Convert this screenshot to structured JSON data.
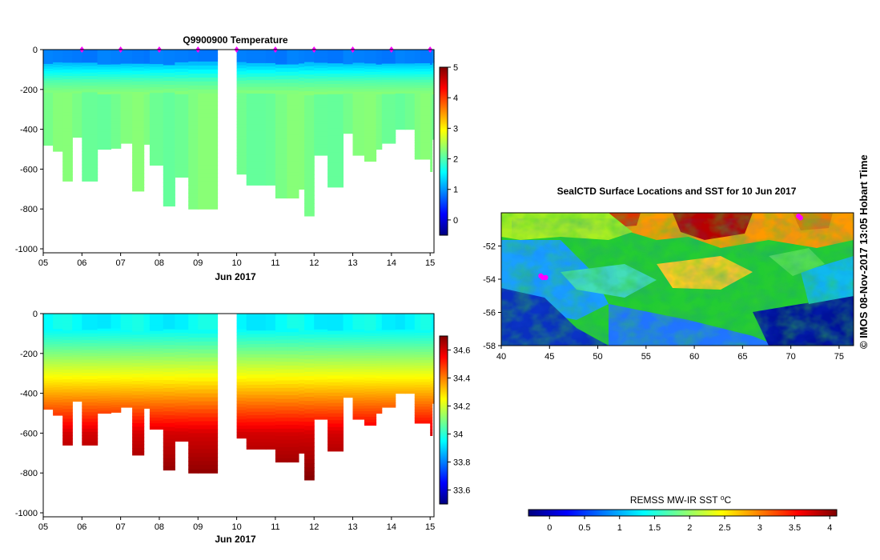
{
  "credit_text": "© IMOS 08-Nov-2017 13:05 Hobart Time",
  "chart_data": [
    {
      "id": "temperature",
      "type": "heatmap",
      "title": "Q9900900  Temperature",
      "xlabel": "Jun 2017",
      "ylabel": "",
      "xlim": [
        5,
        15.1
      ],
      "ylim": [
        -1020,
        0
      ],
      "xticks": [
        "05",
        "06",
        "07",
        "08",
        "09",
        "10",
        "11",
        "12",
        "13",
        "14",
        "15"
      ],
      "yticks": [
        0,
        -200,
        -400,
        -600,
        -800,
        -1000
      ],
      "colorbar": {
        "min": -0.5,
        "max": 5,
        "ticks": [
          0,
          1,
          2,
          3,
          4,
          5
        ]
      },
      "profile_markers": [
        6,
        7,
        8,
        9,
        10,
        11,
        12,
        13,
        14,
        15
      ],
      "profiles": {
        "times": [
          5.0,
          5.25,
          5.5,
          5.75,
          6.0,
          6.4,
          6.75,
          7.0,
          7.3,
          7.6,
          7.75,
          8.1,
          8.4,
          8.75,
          9.0,
          9.5,
          10.0,
          10.25,
          10.75,
          11.0,
          11.3,
          11.6,
          11.75,
          12.0,
          12.35,
          12.75,
          13.0,
          13.3,
          13.6,
          13.75,
          14.1,
          14.35,
          14.6,
          14.75,
          15.0,
          15.05,
          15.1
        ],
        "depths": [
          480,
          510,
          660,
          440,
          660,
          500,
          495,
          470,
          710,
          475,
          580,
          785,
          640,
          800,
          800,
          null,
          625,
          680,
          680,
          745,
          745,
          700,
          835,
          530,
          690,
          420,
          530,
          560,
          500,
          470,
          400,
          400,
          550,
          550,
          612,
          450,
          485
        ]
      }
    },
    {
      "id": "salinity",
      "type": "heatmap",
      "title": "",
      "xlabel": "Jun 2017",
      "ylabel": "",
      "xlim": [
        5,
        15.1
      ],
      "ylim": [
        -1020,
        0
      ],
      "xticks": [
        "05",
        "06",
        "07",
        "08",
        "09",
        "10",
        "11",
        "12",
        "13",
        "14",
        "15"
      ],
      "yticks": [
        0,
        -200,
        -400,
        -600,
        -800,
        -1000
      ],
      "colorbar": {
        "min": 33.5,
        "max": 34.7,
        "ticks": [
          33.6,
          33.8,
          34,
          34.2,
          34.4,
          34.6
        ]
      }
    },
    {
      "id": "sst_map",
      "type": "heatmap",
      "title": "SealCTD Surface Locations and SST for 10 Jun 2017",
      "xlabel": "",
      "ylabel": "",
      "xlim": [
        40,
        76.5
      ],
      "ylim": [
        -58,
        -50
      ],
      "xticks": [
        40,
        45,
        50,
        55,
        60,
        65,
        70,
        75
      ],
      "yticks": [
        -52,
        -54,
        -56,
        -58
      ],
      "track_points": [
        [
          44.3,
          -53.9
        ],
        [
          44.1,
          -53.8
        ],
        [
          44.6,
          -53.9
        ],
        [
          71.0,
          -50.3
        ],
        [
          70.8,
          -50.2
        ]
      ]
    },
    {
      "id": "sst_colorbar",
      "type": "heatmap",
      "title": "REMSS MW-IR SST ⁰C",
      "xlim": [
        -0.3,
        4.1
      ],
      "xticks": [
        0,
        0.5,
        1,
        1.5,
        2,
        2.5,
        3,
        3.5,
        4
      ]
    }
  ],
  "colors": {
    "marker": "#ff00ff",
    "jet": [
      "#00007f",
      "#0000ff",
      "#007fff",
      "#00ffff",
      "#7fff7f",
      "#ffff00",
      "#ff7f00",
      "#ff0000",
      "#7f0000"
    ]
  }
}
